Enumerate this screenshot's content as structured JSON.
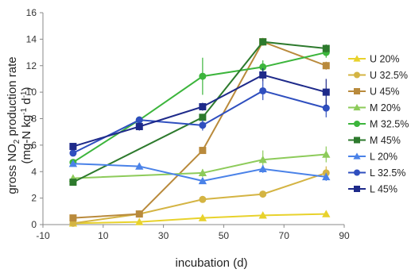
{
  "chart_data": {
    "type": "line",
    "xlabel": "incubation (d)",
    "ylabel_line1_parts": [
      "gross NO",
      "2",
      " production rate"
    ],
    "ylabel_line2_parts": [
      "(mg-N kg",
      "-1",
      " d",
      "-1",
      ")"
    ],
    "xlim": [
      -10,
      90
    ],
    "ylim": [
      0,
      16
    ],
    "xticks": [
      -10,
      10,
      30,
      50,
      70,
      90
    ],
    "yticks": [
      0,
      2,
      4,
      6,
      8,
      10,
      12,
      14,
      16
    ],
    "grid": false,
    "legend_position": "right",
    "series": [
      {
        "name": "U 20%",
        "color": "#e8d22c",
        "marker": "triangle",
        "points": [
          [
            0,
            0.1
          ],
          [
            22,
            0.2
          ],
          [
            43,
            0.5
          ],
          [
            63,
            0.7
          ],
          [
            84,
            0.8
          ]
        ],
        "errors": [
          0,
          0,
          0.1,
          0.1,
          0.1
        ]
      },
      {
        "name": "U 32.5%",
        "color": "#d4b443",
        "marker": "circle",
        "points": [
          [
            0,
            0.1
          ],
          [
            22,
            0.8
          ],
          [
            43,
            1.9
          ],
          [
            63,
            2.3
          ],
          [
            84,
            3.9
          ]
        ],
        "errors": [
          0,
          0.1,
          0.2,
          0.2,
          0.5
        ]
      },
      {
        "name": "U 45%",
        "color": "#b98a3c",
        "marker": "square",
        "points": [
          [
            0,
            0.5
          ],
          [
            22,
            0.8
          ],
          [
            43,
            5.6
          ],
          [
            63,
            13.8
          ],
          [
            84,
            12.0
          ]
        ],
        "errors": [
          0,
          0,
          0.2,
          0.3,
          0.3
        ]
      },
      {
        "name": "M 20%",
        "color": "#8dcb5a",
        "marker": "triangle",
        "points": [
          [
            0,
            3.5
          ],
          [
            43,
            3.9
          ],
          [
            63,
            4.9
          ],
          [
            84,
            5.3
          ]
        ],
        "errors": [
          0,
          0.3,
          0.7,
          0.6
        ]
      },
      {
        "name": "M 32.5%",
        "color": "#3cb53c",
        "marker": "circle",
        "points": [
          [
            0,
            4.7
          ],
          [
            22,
            7.9
          ],
          [
            43,
            11.2
          ],
          [
            63,
            11.9
          ],
          [
            84,
            13.0
          ]
        ],
        "errors": [
          0,
          0.2,
          1.4,
          0.5,
          0.4
        ]
      },
      {
        "name": "M 45%",
        "color": "#2d7a2d",
        "marker": "square",
        "points": [
          [
            0,
            3.2
          ],
          [
            43,
            8.1
          ],
          [
            63,
            13.8
          ],
          [
            84,
            13.3
          ]
        ],
        "errors": [
          0,
          0.2,
          0.2,
          0.3
        ]
      },
      {
        "name": "L 20%",
        "color": "#4a82e8",
        "marker": "triangle",
        "points": [
          [
            0,
            4.6
          ],
          [
            22,
            4.4
          ],
          [
            43,
            3.3
          ],
          [
            63,
            4.2
          ],
          [
            84,
            3.6
          ]
        ],
        "errors": [
          0,
          0.2,
          0.2,
          0.3,
          0.3
        ]
      },
      {
        "name": "L 32.5%",
        "color": "#2f4fbf",
        "marker": "circle",
        "points": [
          [
            0,
            5.4
          ],
          [
            22,
            7.9
          ],
          [
            43,
            7.5
          ],
          [
            63,
            10.1
          ],
          [
            84,
            8.8
          ]
        ],
        "errors": [
          0,
          0.2,
          0.4,
          0.7,
          0.7
        ]
      },
      {
        "name": "L 45%",
        "color": "#1e2a8a",
        "marker": "square",
        "points": [
          [
            0,
            5.9
          ],
          [
            22,
            7.4
          ],
          [
            43,
            8.9
          ],
          [
            63,
            11.3
          ],
          [
            84,
            10.0
          ]
        ],
        "errors": [
          0,
          0.3,
          0.3,
          0.5,
          1.0
        ]
      }
    ]
  }
}
